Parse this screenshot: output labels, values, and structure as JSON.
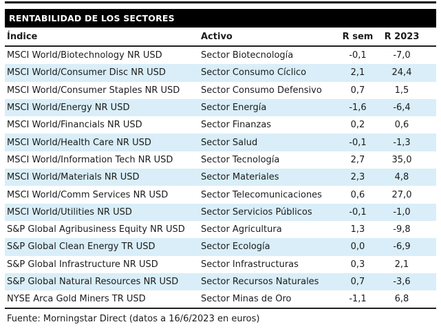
{
  "title": "RENTABILIDAD DE LOS SECTORES",
  "footer": "Fuente: Morningstar Direct (datos a 16/6/2023 en euros)",
  "colors": {
    "title_bar_bg": "#000000",
    "title_bar_text": "#ffffff",
    "row_alt_bg": "#d9eef8",
    "body_text": "#1b1b1b",
    "rule": "#1f1f1f"
  },
  "chart_data": {
    "type": "table",
    "title": "RENTABILIDAD DE LOS SECTORES",
    "columns": [
      "Índice",
      "Activo",
      "R sem",
      "R 2023"
    ],
    "rows": [
      [
        "MSCI World/Biotechnology NR USD",
        "Sector Biotecnología",
        "-0,1",
        "-7,0"
      ],
      [
        "MSCI World/Consumer Disc NR USD",
        "Sector Consumo Cíclico",
        "2,1",
        "24,4"
      ],
      [
        "MSCI World/Consumer Staples NR USD",
        "Sector Consumo Defensivo",
        "0,7",
        "1,5"
      ],
      [
        "MSCI World/Energy NR USD",
        "Sector Energía",
        "-1,6",
        "-6,4"
      ],
      [
        "MSCI World/Financials NR USD",
        "Sector Finanzas",
        "0,2",
        "0,6"
      ],
      [
        "MSCI World/Health Care NR USD",
        "Sector Salud",
        "-0,1",
        "-1,3"
      ],
      [
        "MSCI World/Information Tech NR USD",
        "Sector Tecnología",
        "2,7",
        "35,0"
      ],
      [
        "MSCI World/Materials NR USD",
        "Sector Materiales",
        "2,3",
        "4,8"
      ],
      [
        "MSCI World/Comm Services NR USD",
        "Sector Telecomunicaciones",
        "0,6",
        "27,0"
      ],
      [
        "MSCI World/Utilities NR USD",
        "Sector Servicios Públicos",
        "-0,1",
        "-1,0"
      ],
      [
        "S&P Global Agribusiness Equity NR USD",
        "Sector Agricultura",
        "1,3",
        "-9,8"
      ],
      [
        "S&P Global Clean Energy TR USD",
        "Sector Ecología",
        "0,0",
        "-6,9"
      ],
      [
        "S&P Global Infrastructure NR USD",
        "Sector Infrastructuras",
        "0,3",
        "2,1"
      ],
      [
        "S&P Global Natural Resources NR USD",
        "Sector Recursos Naturales",
        "0,7",
        "-3,6"
      ],
      [
        "NYSE Arca Gold Miners TR USD",
        "Sector Minas de Oro",
        "-1,1",
        "6,8"
      ]
    ],
    "source_note": "Fuente: Morningstar Direct (datos a 16/6/2023 en euros)",
    "layout": {
      "alternating_row_shading": true,
      "numeric_columns_alignment": "center",
      "header_style": "bold with underline rule",
      "title_style": "white bold text on black bar"
    }
  }
}
